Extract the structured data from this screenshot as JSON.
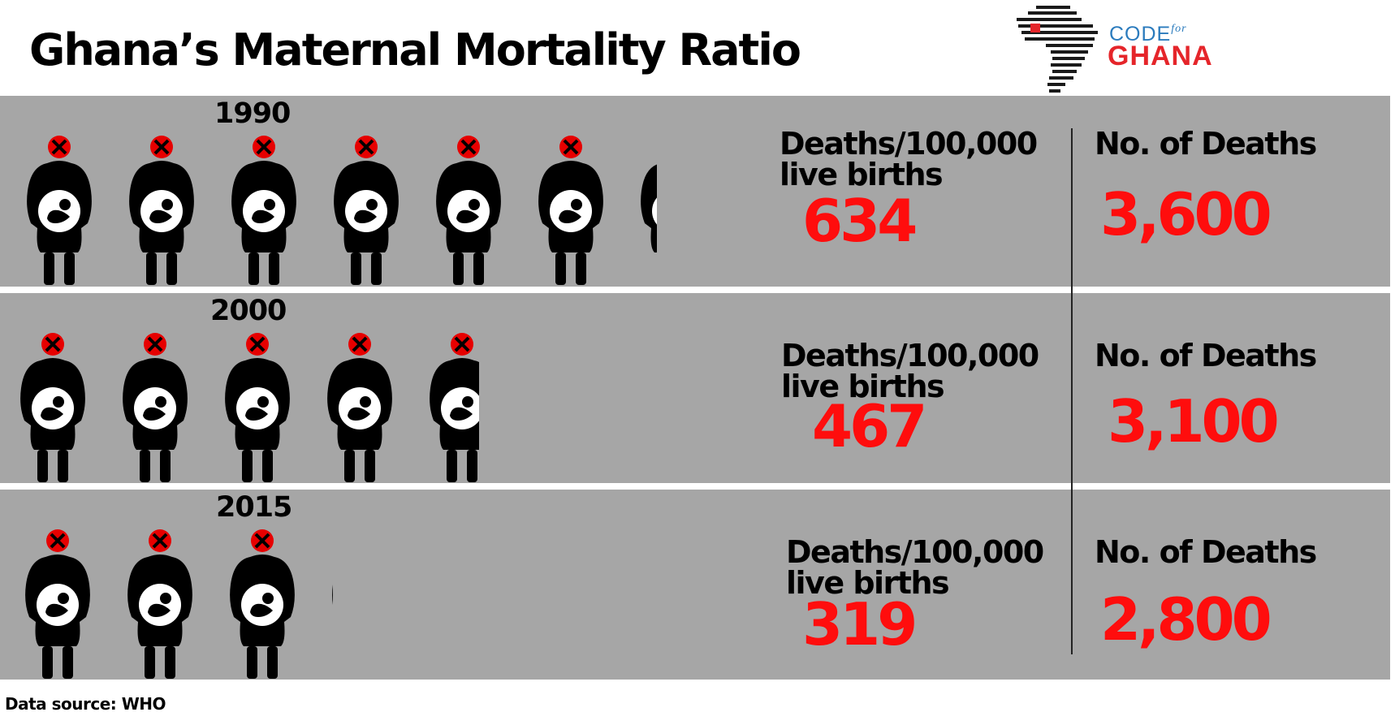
{
  "title": "Ghana’s Maternal Mortality Ratio",
  "logo": {
    "line1": "CODE",
    "line1_small": "for",
    "line2": "GHANA"
  },
  "source": "Data source: WHO",
  "colors": {
    "band": "#a6a6a6",
    "accent_red": "#ff0d0d",
    "logo_blue": "#2b7bbd",
    "logo_red": "#e5252a"
  },
  "icon_name": "pregnant-woman-icon",
  "chart_data": {
    "type": "pictogram",
    "categories": [
      "1990",
      "2000",
      "2015"
    ],
    "series": [
      {
        "name": "Deaths/100,000 live births",
        "values": [
          634,
          467,
          319
        ]
      },
      {
        "name": "No. of Deaths",
        "values": [
          3600,
          3100,
          2800
        ]
      }
    ],
    "icon_unit": 100
  },
  "rows": [
    {
      "year": "1990",
      "ratio_label_1": "Deaths/100,000",
      "ratio_label_2": "live births",
      "ratio": "634",
      "deaths_label": "No. of Deaths",
      "deaths": "3,600"
    },
    {
      "year": "2000",
      "ratio_label_1": "Deaths/100,000",
      "ratio_label_2": "live births",
      "ratio": "467",
      "deaths_label": "No. of Deaths",
      "deaths": "3,100"
    },
    {
      "year": "2015",
      "ratio_label_1": "Deaths/100,000",
      "ratio_label_2": "live births",
      "ratio": "319",
      "deaths_label": "No. of Deaths",
      "deaths": "2,800"
    }
  ]
}
